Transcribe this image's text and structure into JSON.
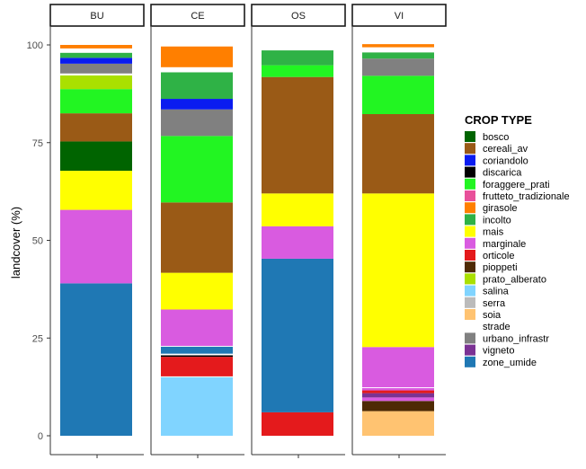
{
  "chart_data": {
    "type": "bar",
    "stacked": true,
    "ylabel": "landcover (%)",
    "xlabel": "",
    "ylim": [
      0,
      100
    ],
    "yticks": [
      0,
      25,
      50,
      75,
      100
    ],
    "legend_title": "CROP TYPE",
    "legend_position": "right",
    "legend": [
      {
        "name": "bosco",
        "color": "#006400"
      },
      {
        "name": "cereali_av",
        "color": "#9A5A16"
      },
      {
        "name": "coriandolo",
        "color": "#0A1CF0"
      },
      {
        "name": "discarica",
        "color": "#000000"
      },
      {
        "name": "foraggere_prati",
        "color": "#22F522"
      },
      {
        "name": "frutteto_tradizionale",
        "color": "#E8509A"
      },
      {
        "name": "girasole",
        "color": "#FF7F00"
      },
      {
        "name": "incolto",
        "color": "#2FB246"
      },
      {
        "name": "mais",
        "color": "#FFFF00"
      },
      {
        "name": "marginale",
        "color": "#D95BE0"
      },
      {
        "name": "orticole",
        "color": "#E41A1C"
      },
      {
        "name": "pioppeti",
        "color": "#4E2A04"
      },
      {
        "name": "prato_alberato",
        "color": "#AAE000"
      },
      {
        "name": "salina",
        "color": "#80D4FF"
      },
      {
        "name": "serra",
        "color": "#BBBBBB"
      },
      {
        "name": "soia",
        "color": "#FFC371"
      },
      {
        "name": "strade",
        "color": "#FFFFFF"
      },
      {
        "name": "urbano_infrastr",
        "color": "#808080"
      },
      {
        "name": "vigneto",
        "color": "#7B3294"
      },
      {
        "name": "zone_umide",
        "color": "#1F78B4"
      }
    ],
    "panels": [
      {
        "name": "BU",
        "segments": [
          {
            "class": "zone_umide",
            "value": 39
          },
          {
            "class": "marginale",
            "value": 18.8
          },
          {
            "class": "mais",
            "value": 10
          },
          {
            "class": "bosco",
            "value": 7.5
          },
          {
            "class": "cereali_av",
            "value": 7.2
          },
          {
            "class": "foraggere_prati",
            "value": 6.2
          },
          {
            "class": "prato_alberato",
            "value": 3.5
          },
          {
            "class": "strade",
            "value": 0.5
          },
          {
            "class": "urbano_infrastr",
            "value": 2.5
          },
          {
            "class": "coriandolo",
            "value": 1.5
          },
          {
            "class": "incolto",
            "value": 1.3
          },
          {
            "class": "strade",
            "value": 1.1
          },
          {
            "class": "girasole",
            "value": 0.9
          }
        ]
      },
      {
        "name": "CE",
        "segments": [
          {
            "class": "salina",
            "value": 15
          },
          {
            "class": "strade",
            "value": 0.2
          },
          {
            "class": "orticole",
            "value": 5
          },
          {
            "class": "discarica",
            "value": 0.4
          },
          {
            "class": "strade",
            "value": 0.4
          },
          {
            "class": "zone_umide",
            "value": 1.8
          },
          {
            "class": "strade",
            "value": 0.2
          },
          {
            "class": "marginale",
            "value": 9.3
          },
          {
            "class": "mais",
            "value": 9.4
          },
          {
            "class": "cereali_av",
            "value": 18
          },
          {
            "class": "foraggere_prati",
            "value": 17
          },
          {
            "class": "urbano_infrastr",
            "value": 6.8
          },
          {
            "class": "coriandolo",
            "value": 2.7
          },
          {
            "class": "incolto",
            "value": 6.8
          },
          {
            "class": "strade",
            "value": 1.3
          },
          {
            "class": "girasole",
            "value": 5.3
          }
        ]
      },
      {
        "name": "OS",
        "segments": [
          {
            "class": "orticole",
            "value": 6
          },
          {
            "class": "zone_umide",
            "value": 39.3
          },
          {
            "class": "marginale",
            "value": 8.3
          },
          {
            "class": "mais",
            "value": 8.4
          },
          {
            "class": "cereali_av",
            "value": 29.8
          },
          {
            "class": "foraggere_prati",
            "value": 3
          },
          {
            "class": "incolto",
            "value": 3.8
          }
        ]
      },
      {
        "name": "VI",
        "segments": [
          {
            "class": "soia",
            "value": 6.3
          },
          {
            "class": "pioppeti",
            "value": 2.6
          },
          {
            "class": "marginale",
            "value": 0.9
          },
          {
            "class": "vigneto",
            "value": 1.1
          },
          {
            "class": "orticole",
            "value": 0.7
          },
          {
            "class": "marginale",
            "value": 0.6
          },
          {
            "class": "strade",
            "value": 0.2
          },
          {
            "class": "marginale",
            "value": 10.3
          },
          {
            "class": "mais",
            "value": 39.3
          },
          {
            "class": "cereali_av",
            "value": 20.3
          },
          {
            "class": "foraggere_prati",
            "value": 9.8
          },
          {
            "class": "urbano_infrastr",
            "value": 4.4
          },
          {
            "class": "incolto",
            "value": 1.6
          },
          {
            "class": "strade",
            "value": 1.3
          },
          {
            "class": "girasole",
            "value": 0.8
          }
        ]
      }
    ]
  }
}
